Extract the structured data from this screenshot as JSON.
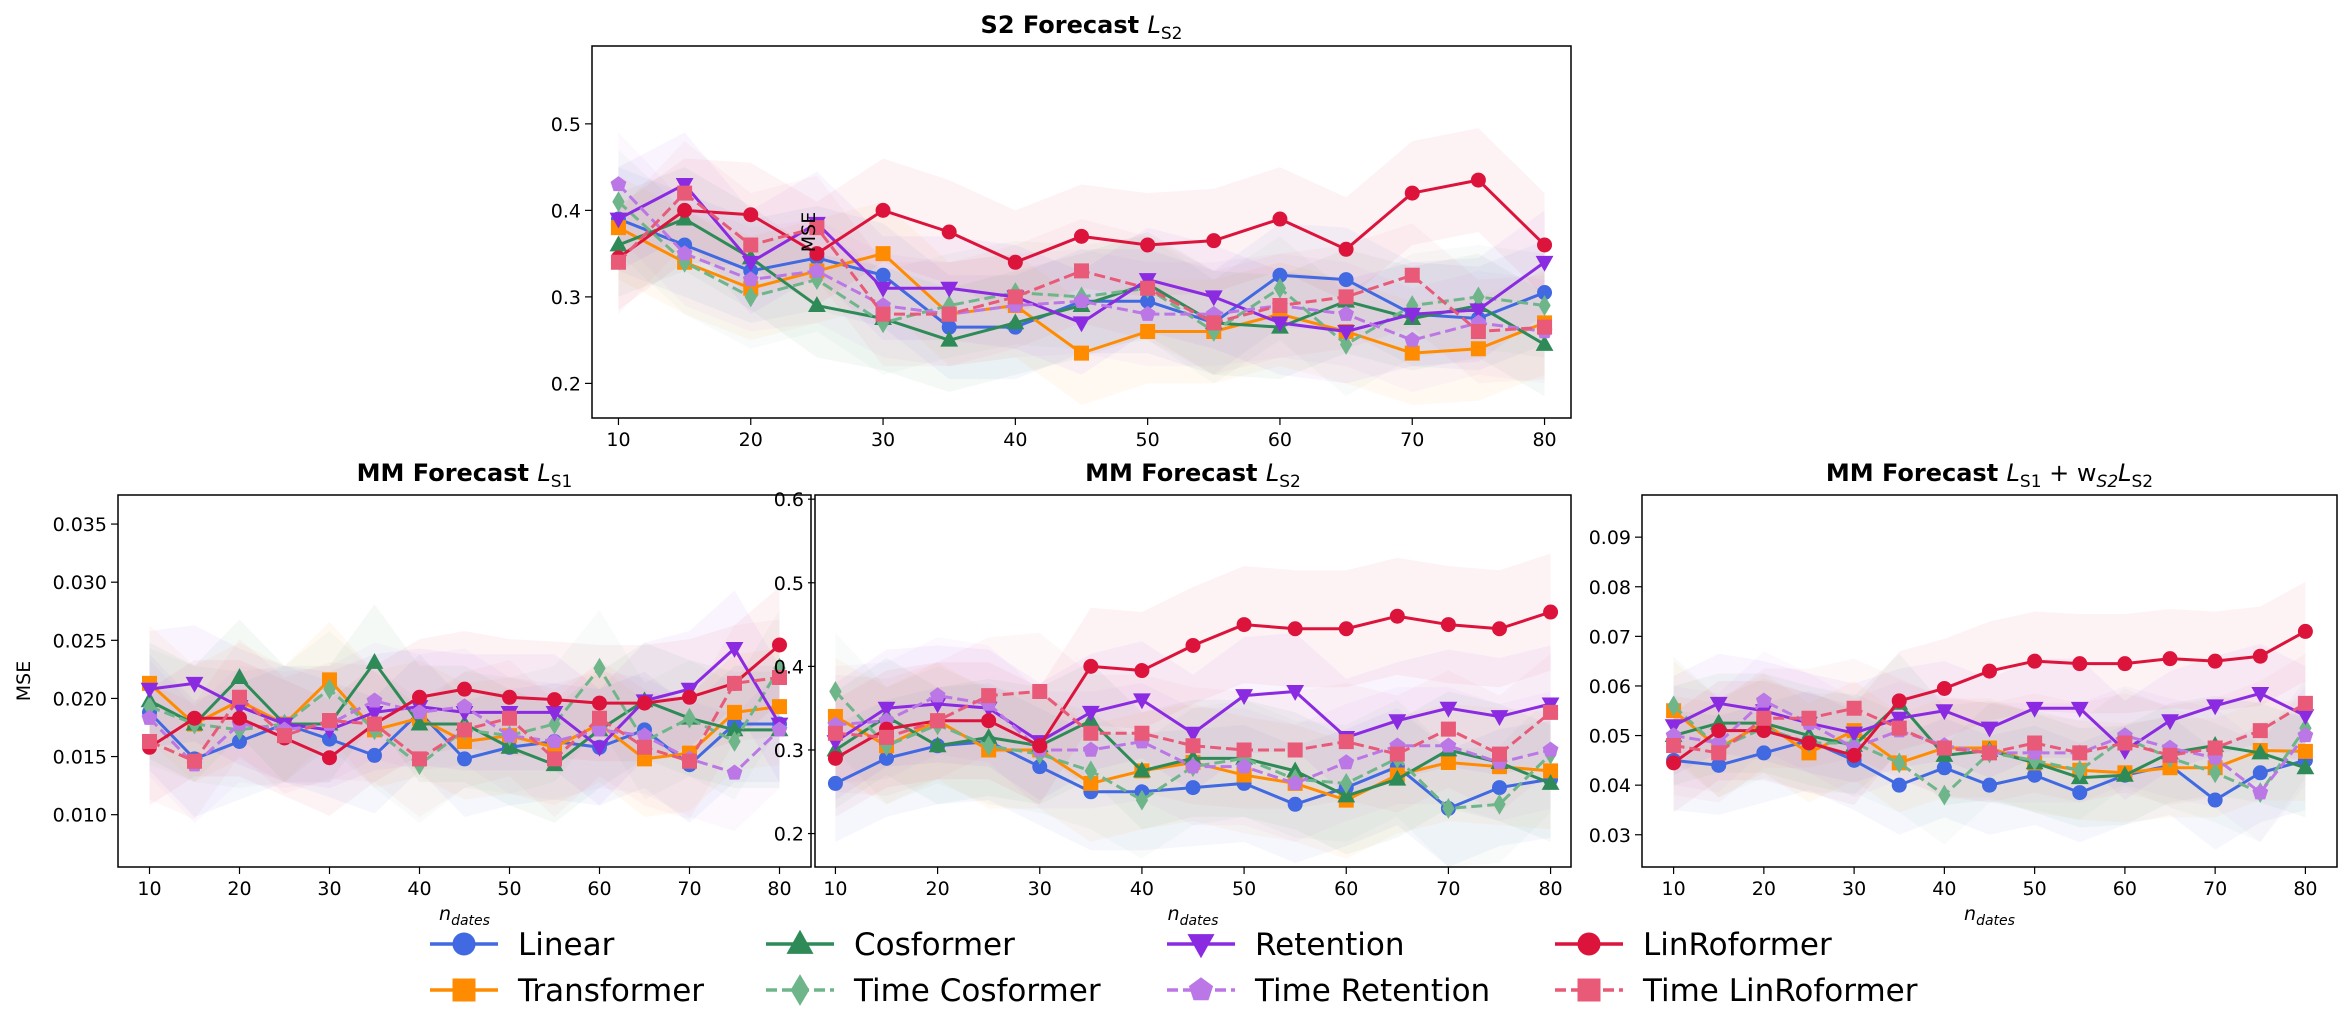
{
  "figure": {
    "legend": [
      {
        "name": "Linear",
        "key": "linear"
      },
      {
        "name": "Transformer",
        "key": "transformer"
      },
      {
        "name": "Cosformer",
        "key": "cosformer"
      },
      {
        "name": "Time Cosformer",
        "key": "time_cosformer"
      },
      {
        "name": "Retention",
        "key": "retention"
      },
      {
        "name": "Time Retention",
        "key": "time_retention"
      },
      {
        "name": "LinRoformer",
        "key": "linroformer"
      },
      {
        "name": "Time LinRoformer",
        "key": "time_linroformer"
      }
    ],
    "styles": {
      "linear": {
        "color": "#4169e1",
        "marker": "circle",
        "dash": false
      },
      "transformer": {
        "color": "#ff8c00",
        "marker": "square",
        "dash": false
      },
      "cosformer": {
        "color": "#2e8b57",
        "marker": "triangle-up",
        "dash": false
      },
      "time_cosformer": {
        "color": "#6fb58a",
        "marker": "diamond",
        "dash": true
      },
      "retention": {
        "color": "#8a2be2",
        "marker": "triangle-down",
        "dash": false
      },
      "time_retention": {
        "color": "#bb77e5",
        "marker": "pentagon",
        "dash": true
      },
      "linroformer": {
        "color": "#dc143c",
        "marker": "circle",
        "dash": false
      },
      "time_linroformer": {
        "color": "#e85a77",
        "marker": "square",
        "dash": true
      }
    }
  },
  "chart_data": [
    {
      "id": "s2",
      "type": "line",
      "title_main": "S2 Forecast",
      "title_math": "L",
      "title_sub": "S2",
      "ylabel": "MSE",
      "xlabel": "",
      "xlim": [
        8,
        82
      ],
      "ylim": [
        0.16,
        0.59
      ],
      "yticks": [
        0.2,
        0.3,
        0.4,
        0.5
      ],
      "ytick_labels": [
        "0.2",
        "0.3",
        "0.4",
        "0.5"
      ],
      "xticks": [
        10,
        20,
        30,
        40,
        50,
        60,
        70,
        80
      ],
      "xtick_labels": [
        "10",
        "20",
        "30",
        "40",
        "50",
        "60",
        "70",
        "80"
      ],
      "x": [
        10,
        15,
        20,
        25,
        30,
        35,
        40,
        45,
        50,
        55,
        60,
        65,
        70,
        75,
        80
      ],
      "band": 0.06,
      "series": [
        {
          "key": "linear",
          "values": [
            0.39,
            0.36,
            0.33,
            0.345,
            0.325,
            0.265,
            0.265,
            0.295,
            0.295,
            0.27,
            0.325,
            0.32,
            0.28,
            0.275,
            0.305
          ]
        },
        {
          "key": "transformer",
          "values": [
            0.38,
            0.34,
            0.31,
            0.33,
            0.35,
            0.28,
            0.29,
            0.235,
            0.26,
            0.26,
            0.28,
            0.26,
            0.235,
            0.24,
            0.27
          ]
        },
        {
          "key": "cosformer",
          "values": [
            0.36,
            0.39,
            0.345,
            0.29,
            0.275,
            0.25,
            0.27,
            0.29,
            0.315,
            0.27,
            0.265,
            0.295,
            0.275,
            0.29,
            0.245
          ]
        },
        {
          "key": "time_cosformer",
          "values": [
            0.41,
            0.34,
            0.3,
            0.32,
            0.27,
            0.29,
            0.305,
            0.3,
            0.31,
            0.26,
            0.31,
            0.245,
            0.29,
            0.3,
            0.29
          ]
        },
        {
          "key": "retention",
          "values": [
            0.39,
            0.43,
            0.34,
            0.385,
            0.31,
            0.31,
            0.3,
            0.27,
            0.32,
            0.3,
            0.27,
            0.26,
            0.28,
            0.285,
            0.34
          ]
        },
        {
          "key": "time_retention",
          "values": [
            0.43,
            0.35,
            0.32,
            0.33,
            0.29,
            0.28,
            0.29,
            0.295,
            0.28,
            0.28,
            0.29,
            0.28,
            0.25,
            0.27,
            0.26
          ]
        },
        {
          "key": "linroformer",
          "values": [
            0.345,
            0.4,
            0.395,
            0.35,
            0.4,
            0.375,
            0.34,
            0.37,
            0.36,
            0.365,
            0.39,
            0.355,
            0.42,
            0.435,
            0.36
          ]
        },
        {
          "key": "time_linroformer",
          "values": [
            0.34,
            0.42,
            0.36,
            0.38,
            0.28,
            0.28,
            0.3,
            0.33,
            0.31,
            0.27,
            0.29,
            0.3,
            0.325,
            0.26,
            0.265
          ]
        }
      ]
    },
    {
      "id": "mm1",
      "type": "line",
      "title_main": "MM Forecast",
      "title_math": "L",
      "title_sub": "S1",
      "ylabel": "MSE",
      "xlabel": "n_dates",
      "xlim": [
        6.5,
        83.5
      ],
      "ylim": [
        0.0055,
        0.0375
      ],
      "yticks": [
        0.01,
        0.015,
        0.02,
        0.025,
        0.03,
        0.035
      ],
      "ytick_labels": [
        "0.010",
        "0.015",
        "0.020",
        "0.025",
        "0.030",
        "0.035"
      ],
      "xticks": [
        10,
        20,
        30,
        40,
        50,
        60,
        70,
        80
      ],
      "xtick_labels": [
        "10",
        "20",
        "30",
        "40",
        "50",
        "60",
        "70",
        "80"
      ],
      "x": [
        10,
        15,
        20,
        25,
        30,
        35,
        40,
        45,
        50,
        55,
        60,
        65,
        70,
        75,
        80
      ],
      "band": 0.005,
      "series": [
        {
          "key": "linear",
          "values": [
            0.0188,
            0.0148,
            0.0163,
            0.0178,
            0.0165,
            0.0151,
            0.0188,
            0.0148,
            0.0158,
            0.0163,
            0.0158,
            0.0173,
            0.0143,
            0.0178,
            0.0178
          ]
        },
        {
          "key": "transformer",
          "values": [
            0.0213,
            0.0178,
            0.0198,
            0.0178,
            0.0216,
            0.0173,
            0.0183,
            0.0163,
            0.0168,
            0.0158,
            0.0178,
            0.0148,
            0.0153,
            0.0188,
            0.0193
          ]
        },
        {
          "key": "cosformer",
          "values": [
            0.0198,
            0.0178,
            0.0218,
            0.0178,
            0.0178,
            0.0231,
            0.0178,
            0.0178,
            0.0158,
            0.0143,
            0.0173,
            0.0198,
            0.0183,
            0.0173,
            0.0173
          ]
        },
        {
          "key": "time_cosformer",
          "values": [
            0.0193,
            0.0178,
            0.0173,
            0.0178,
            0.0208,
            0.0173,
            0.0143,
            0.0173,
            0.0168,
            0.0178,
            0.0226,
            0.0163,
            0.0183,
            0.0163,
            0.0226
          ]
        },
        {
          "key": "retention",
          "values": [
            0.0208,
            0.0213,
            0.0193,
            0.0178,
            0.0173,
            0.0188,
            0.0193,
            0.0188,
            0.0188,
            0.0188,
            0.0158,
            0.0198,
            0.0208,
            0.0243,
            0.0178
          ]
        },
        {
          "key": "time_retention",
          "values": [
            0.0183,
            0.0143,
            0.0178,
            0.0173,
            0.0178,
            0.0198,
            0.0188,
            0.0193,
            0.0168,
            0.0163,
            0.0173,
            0.0168,
            0.0148,
            0.0136,
            0.0173
          ]
        },
        {
          "key": "linroformer",
          "values": [
            0.0158,
            0.0183,
            0.0183,
            0.0166,
            0.0149,
            0.0178,
            0.0201,
            0.0208,
            0.0201,
            0.0199,
            0.0196,
            0.0196,
            0.0201,
            0.0213,
            0.0246
          ]
        },
        {
          "key": "time_linroformer",
          "values": [
            0.0163,
            0.0146,
            0.0201,
            0.0168,
            0.0181,
            0.0178,
            0.0148,
            0.0173,
            0.0183,
            0.0148,
            0.0183,
            0.0158,
            0.0146,
            0.0213,
            0.0218
          ]
        }
      ]
    },
    {
      "id": "mm2",
      "type": "line",
      "title_main": "MM Forecast",
      "title_math": "L",
      "title_sub": "S2",
      "ylabel": "",
      "xlabel": "n_dates",
      "xlim": [
        8,
        82
      ],
      "ylim": [
        0.16,
        0.605
      ],
      "yticks": [
        0.2,
        0.3,
        0.4,
        0.5,
        0.6
      ],
      "ytick_labels": [
        "0.2",
        "0.3",
        "0.4",
        "0.5",
        "0.6"
      ],
      "xticks": [
        10,
        20,
        30,
        40,
        50,
        60,
        70,
        80
      ],
      "xtick_labels": [
        "10",
        "20",
        "30",
        "40",
        "50",
        "60",
        "70",
        "80"
      ],
      "x": [
        10,
        15,
        20,
        25,
        30,
        35,
        40,
        45,
        50,
        55,
        60,
        65,
        70,
        75,
        80
      ],
      "band": 0.07,
      "series": [
        {
          "key": "linear",
          "values": [
            0.26,
            0.29,
            0.305,
            0.31,
            0.28,
            0.25,
            0.25,
            0.255,
            0.26,
            0.235,
            0.255,
            0.28,
            0.23,
            0.255,
            0.265
          ]
        },
        {
          "key": "transformer",
          "values": [
            0.34,
            0.305,
            0.335,
            0.3,
            0.3,
            0.26,
            0.275,
            0.285,
            0.27,
            0.26,
            0.24,
            0.27,
            0.285,
            0.28,
            0.275
          ]
        },
        {
          "key": "cosformer",
          "values": [
            0.3,
            0.34,
            0.305,
            0.315,
            0.305,
            0.335,
            0.275,
            0.29,
            0.29,
            0.275,
            0.245,
            0.265,
            0.3,
            0.285,
            0.26
          ]
        },
        {
          "key": "time_cosformer",
          "values": [
            0.37,
            0.305,
            0.33,
            0.305,
            0.295,
            0.275,
            0.24,
            0.28,
            0.29,
            0.265,
            0.26,
            0.29,
            0.23,
            0.235,
            0.295
          ]
        },
        {
          "key": "retention",
          "values": [
            0.31,
            0.35,
            0.355,
            0.35,
            0.31,
            0.345,
            0.36,
            0.32,
            0.365,
            0.37,
            0.315,
            0.335,
            0.35,
            0.34,
            0.355
          ]
        },
        {
          "key": "time_retention",
          "values": [
            0.33,
            0.335,
            0.365,
            0.355,
            0.3,
            0.3,
            0.31,
            0.28,
            0.28,
            0.26,
            0.285,
            0.305,
            0.305,
            0.285,
            0.3
          ]
        },
        {
          "key": "linroformer",
          "values": [
            0.29,
            0.325,
            0.335,
            0.335,
            0.305,
            0.4,
            0.395,
            0.425,
            0.45,
            0.445,
            0.445,
            0.46,
            0.45,
            0.445,
            0.465
          ]
        },
        {
          "key": "time_linroformer",
          "values": [
            0.32,
            0.315,
            0.335,
            0.365,
            0.37,
            0.32,
            0.32,
            0.305,
            0.3,
            0.3,
            0.31,
            0.295,
            0.325,
            0.295,
            0.345
          ]
        }
      ]
    },
    {
      "id": "mm3",
      "type": "line",
      "title_main": "MM Forecast",
      "title_math": "L",
      "title_sub": "S1",
      "title_extra": " + w",
      "title_extra_sub": "S2",
      "title_extra2": "L",
      "title_extra2_sub": "S2",
      "ylabel": "",
      "xlabel": "n_dates",
      "xlim": [
        6.5,
        83.5
      ],
      "ylim": [
        0.0235,
        0.0985
      ],
      "yticks": [
        0.03,
        0.04,
        0.05,
        0.06,
        0.07,
        0.08,
        0.09
      ],
      "ytick_labels": [
        "0.03",
        "0.04",
        "0.05",
        "0.06",
        "0.07",
        "0.08",
        "0.09"
      ],
      "xticks": [
        10,
        20,
        30,
        40,
        50,
        60,
        70,
        80
      ],
      "xtick_labels": [
        "10",
        "20",
        "30",
        "40",
        "50",
        "60",
        "70",
        "80"
      ],
      "x": [
        10,
        15,
        20,
        25,
        30,
        35,
        40,
        45,
        50,
        55,
        60,
        65,
        70,
        75,
        80
      ],
      "band": 0.01,
      "series": [
        {
          "key": "linear",
          "values": [
            0.045,
            0.044,
            0.0465,
            0.049,
            0.045,
            0.04,
            0.0435,
            0.04,
            0.042,
            0.0385,
            0.042,
            0.044,
            0.037,
            0.0425,
            0.045
          ]
        },
        {
          "key": "transformer",
          "values": [
            0.055,
            0.0475,
            0.0525,
            0.0465,
            0.051,
            0.0445,
            0.0475,
            0.0475,
            0.0445,
            0.043,
            0.0425,
            0.0435,
            0.0435,
            0.047,
            0.0468
          ]
        },
        {
          "key": "cosformer",
          "values": [
            0.05,
            0.0525,
            0.0525,
            0.05,
            0.048,
            0.0565,
            0.046,
            0.047,
            0.0445,
            0.0415,
            0.042,
            0.0465,
            0.048,
            0.0465,
            0.0435
          ]
        },
        {
          "key": "time_cosformer",
          "values": [
            0.056,
            0.0475,
            0.0515,
            0.0485,
            0.0485,
            0.0445,
            0.038,
            0.0465,
            0.045,
            0.043,
            0.0495,
            0.0455,
            0.0425,
            0.0385,
            0.0515
          ]
        },
        {
          "key": "retention",
          "values": [
            0.052,
            0.0565,
            0.055,
            0.0525,
            0.0505,
            0.0535,
            0.055,
            0.0515,
            0.0555,
            0.0555,
            0.047,
            0.053,
            0.056,
            0.0585,
            0.054
          ]
        },
        {
          "key": "time_retention",
          "values": [
            0.05,
            0.0485,
            0.057,
            0.0525,
            0.0475,
            0.051,
            0.048,
            0.0465,
            0.0465,
            0.0465,
            0.05,
            0.0475,
            0.0455,
            0.0385,
            0.05
          ]
        },
        {
          "key": "linroformer",
          "values": [
            0.0445,
            0.051,
            0.051,
            0.0485,
            0.046,
            0.057,
            0.0595,
            0.063,
            0.065,
            0.0645,
            0.0645,
            0.0655,
            0.065,
            0.066,
            0.071
          ]
        },
        {
          "key": "time_linroformer",
          "values": [
            0.048,
            0.0465,
            0.0535,
            0.0535,
            0.0555,
            0.0515,
            0.0475,
            0.0465,
            0.0485,
            0.0465,
            0.0485,
            0.046,
            0.0475,
            0.051,
            0.0565
          ]
        }
      ]
    }
  ]
}
